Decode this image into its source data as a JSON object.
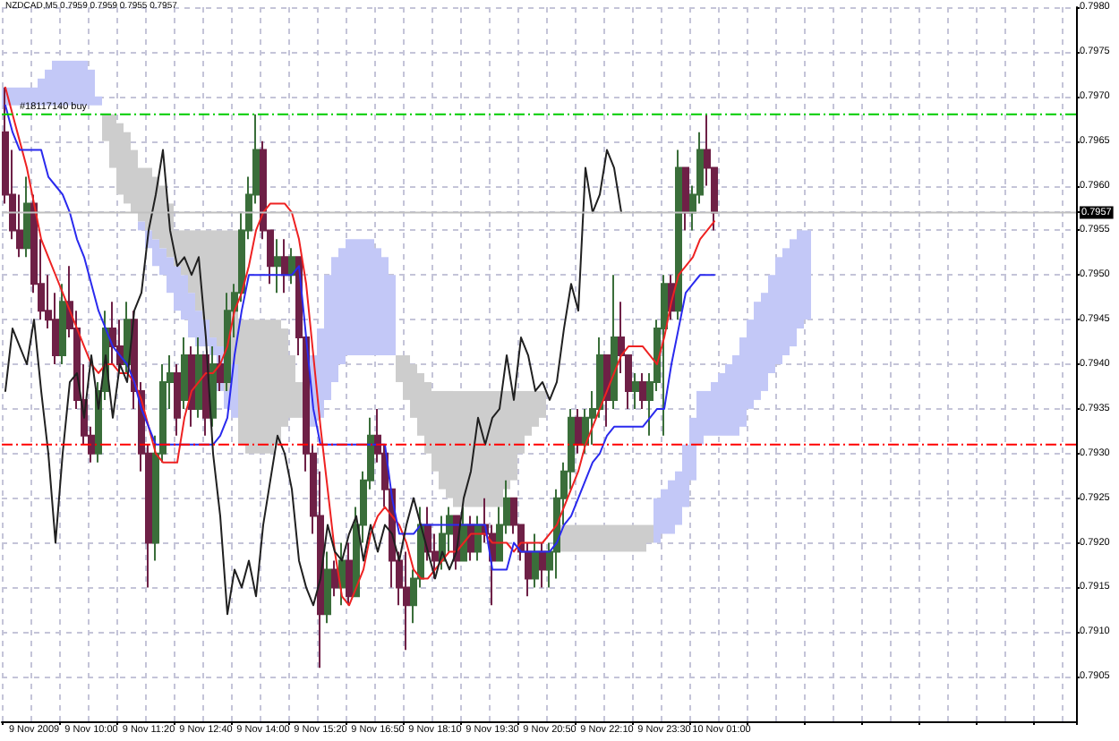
{
  "chart_data": {
    "type": "candlestick",
    "title": "NZDCAD,M5 0.7959 0.7959 0.7955 0.7957",
    "categories": [
      null,
      null,
      null,
      null,
      "9 Nov 2009",
      null,
      null,
      null,
      null,
      null,
      null,
      null,
      "9 Nov 10:00",
      null,
      null,
      null,
      null,
      null,
      null,
      null,
      "9 Nov 11:20",
      null,
      null,
      null,
      null,
      null,
      null,
      null,
      "9 Nov 12:40",
      null,
      null,
      null,
      null,
      null,
      null,
      null,
      "9 Nov 14:00",
      null,
      null,
      null,
      null,
      null,
      null,
      null,
      "9 Nov 15:20",
      null,
      null,
      null,
      null,
      null,
      null,
      null,
      "9 Nov 16:50",
      null,
      null,
      null,
      null,
      null,
      null,
      null,
      "9 Nov 18:10",
      null,
      null,
      null,
      null,
      null,
      null,
      null,
      "9 Nov 19:30",
      null,
      null,
      null,
      null,
      null,
      null,
      null,
      "9 Nov 20:50",
      null,
      null,
      null,
      null,
      null,
      null,
      null,
      "9 Nov 22:10",
      null,
      null,
      null,
      null,
      null,
      null,
      null,
      "9 Nov 23:30",
      null,
      null,
      null,
      null,
      null,
      null,
      null,
      "10 Nov 01:00",
      null,
      null,
      null,
      null,
      null,
      null,
      null,
      null,
      null,
      null,
      null,
      null,
      null,
      null,
      null,
      null,
      null,
      null,
      null,
      null,
      null,
      null,
      null,
      null,
      null,
      null,
      null,
      null,
      null,
      null,
      null,
      null,
      null,
      null,
      null,
      null,
      null,
      null,
      null,
      null,
      null,
      null,
      null,
      null,
      null,
      null,
      null,
      null,
      null
    ],
    "ohlc": [
      [
        0.7966,
        0.7971,
        0.7958,
        0.7959
      ],
      [
        0.7959,
        0.7964,
        0.7954,
        0.7955
      ],
      [
        0.7955,
        0.7959,
        0.7952,
        0.7953
      ],
      [
        0.7953,
        0.7961,
        0.7952,
        0.7958
      ],
      [
        0.7958,
        0.7959,
        0.7948,
        0.7949
      ],
      [
        0.7949,
        0.7954,
        0.7945,
        0.7946
      ],
      [
        0.7946,
        0.795,
        0.7944,
        0.7945
      ],
      [
        0.7945,
        0.7948,
        0.794,
        0.7941
      ],
      [
        0.7941,
        0.7949,
        0.794,
        0.7947
      ],
      [
        0.7947,
        0.7951,
        0.7943,
        0.7944
      ],
      [
        0.7944,
        0.7946,
        0.7935,
        0.7936
      ],
      [
        0.7936,
        0.794,
        0.7931,
        0.7932
      ],
      [
        0.7932,
        0.7933,
        0.7929,
        0.793
      ],
      [
        0.793,
        0.7938,
        0.7929,
        0.7937
      ],
      [
        0.7937,
        0.7946,
        0.7936,
        0.7944
      ],
      [
        0.7944,
        0.7947,
        0.794,
        0.7942
      ],
      [
        0.7942,
        0.7945,
        0.7939,
        0.794
      ],
      [
        0.794,
        0.7947,
        0.7939,
        0.7945
      ],
      [
        0.7945,
        0.7946,
        0.7935,
        0.7937
      ],
      [
        0.7937,
        0.7938,
        0.7928,
        0.793
      ],
      [
        0.793,
        0.7931,
        0.7915,
        0.792
      ],
      [
        0.792,
        0.7932,
        0.7918,
        0.793
      ],
      [
        0.793,
        0.794,
        0.7929,
        0.7938
      ],
      [
        0.7938,
        0.7941,
        0.7935,
        0.7939
      ],
      [
        0.7939,
        0.794,
        0.7932,
        0.7934
      ],
      [
        0.7936,
        0.7943,
        0.7935,
        0.7941
      ],
      [
        0.7941,
        0.7942,
        0.7933,
        0.7935
      ],
      [
        0.7935,
        0.7943,
        0.7934,
        0.7941
      ],
      [
        0.7941,
        0.7941,
        0.7932,
        0.7934
      ],
      [
        0.7934,
        0.7942,
        0.7933,
        0.794
      ],
      [
        0.794,
        0.7941,
        0.7937,
        0.7938
      ],
      [
        0.7938,
        0.7948,
        0.7937,
        0.7946
      ],
      [
        0.7946,
        0.7949,
        0.7943,
        0.7948
      ],
      [
        0.7948,
        0.7957,
        0.7947,
        0.7955
      ],
      [
        0.7955,
        0.7961,
        0.7954,
        0.7959
      ],
      [
        0.7959,
        0.7968,
        0.7958,
        0.7964
      ],
      [
        0.7964,
        0.7965,
        0.7954,
        0.7955
      ],
      [
        0.7955,
        0.7955,
        0.7949,
        0.7951
      ],
      [
        0.7951,
        0.7954,
        0.7948,
        0.7952
      ],
      [
        0.7952,
        0.7954,
        0.7948,
        0.795
      ],
      [
        0.795,
        0.7953,
        0.7949,
        0.7952
      ],
      [
        0.7952,
        0.7952,
        0.7941,
        0.7943
      ],
      [
        0.7943,
        0.7943,
        0.7928,
        0.793
      ],
      [
        0.793,
        0.7931,
        0.7921,
        0.7923
      ],
      [
        0.7923,
        0.7928,
        0.7906,
        0.7912
      ],
      [
        0.7912,
        0.7919,
        0.7911,
        0.7917
      ],
      [
        0.7917,
        0.7918,
        0.7914,
        0.7915
      ],
      [
        0.7915,
        0.792,
        0.7913,
        0.7918
      ],
      [
        0.7918,
        0.792,
        0.7913,
        0.7914
      ],
      [
        0.7914,
        0.7924,
        0.7914,
        0.7922
      ],
      [
        0.7922,
        0.7928,
        0.792,
        0.7927
      ],
      [
        0.7927,
        0.7934,
        0.7926,
        0.7932
      ],
      [
        0.7932,
        0.7935,
        0.7929,
        0.793
      ],
      [
        0.793,
        0.7931,
        0.7924,
        0.7926
      ],
      [
        0.7926,
        0.7926,
        0.7915,
        0.7918
      ],
      [
        0.7918,
        0.7919,
        0.7913,
        0.7915
      ],
      [
        0.7915,
        0.7919,
        0.7908,
        0.7913
      ],
      [
        0.7913,
        0.7917,
        0.7911,
        0.7916
      ],
      [
        0.7916,
        0.7924,
        0.7915,
        0.7922
      ],
      [
        0.7922,
        0.7924,
        0.7918,
        0.7919
      ],
      [
        0.7919,
        0.7921,
        0.7916,
        0.7918
      ],
      [
        0.7918,
        0.7923,
        0.7917,
        0.7921
      ],
      [
        0.7921,
        0.7924,
        0.7919,
        0.7923
      ],
      [
        0.7923,
        0.7923,
        0.7917,
        0.7918
      ],
      [
        0.7918,
        0.7924,
        0.7918,
        0.7922
      ],
      [
        0.7922,
        0.7923,
        0.7918,
        0.7919
      ],
      [
        0.7919,
        0.7923,
        0.7918,
        0.7922
      ],
      [
        0.7922,
        0.7925,
        0.792,
        0.7921
      ],
      [
        0.7921,
        0.7922,
        0.7913,
        0.7918
      ],
      [
        0.7918,
        0.7924,
        0.7918,
        0.7922
      ],
      [
        0.7922,
        0.7927,
        0.7921,
        0.7925
      ],
      [
        0.7925,
        0.7925,
        0.7921,
        0.7922
      ],
      [
        0.7922,
        0.7922,
        0.7918,
        0.7919
      ],
      [
        0.7919,
        0.792,
        0.7914,
        0.7916
      ],
      [
        0.7916,
        0.7921,
        0.7915,
        0.7919
      ],
      [
        0.7919,
        0.792,
        0.7915,
        0.7917
      ],
      [
        0.7917,
        0.792,
        0.7915,
        0.7919
      ],
      [
        0.7919,
        0.7926,
        0.7916,
        0.7925
      ],
      [
        0.7925,
        0.7929,
        0.7922,
        0.7928
      ],
      [
        0.7928,
        0.7935,
        0.7926,
        0.7934
      ],
      [
        0.7934,
        0.7935,
        0.793,
        0.7931
      ],
      [
        0.7931,
        0.7935,
        0.793,
        0.7934
      ],
      [
        0.7934,
        0.7937,
        0.7931,
        0.7935
      ],
      [
        0.7935,
        0.7943,
        0.7934,
        0.7941
      ],
      [
        0.7941,
        0.7941,
        0.7933,
        0.7936
      ],
      [
        0.7936,
        0.795,
        0.7935,
        0.7943
      ],
      [
        0.7943,
        0.7947,
        0.7939,
        0.7941
      ],
      [
        0.7941,
        0.7941,
        0.7935,
        0.7937
      ],
      [
        0.7937,
        0.7939,
        0.7935,
        0.7938
      ],
      [
        0.7938,
        0.7939,
        0.7935,
        0.7936
      ],
      [
        0.7936,
        0.7939,
        0.7932,
        0.7938
      ],
      [
        0.7938,
        0.7945,
        0.7937,
        0.7944
      ],
      [
        0.7944,
        0.795,
        0.7932,
        0.7949
      ],
      [
        0.7949,
        0.795,
        0.7945,
        0.7946
      ],
      [
        0.7946,
        0.7964,
        0.7945,
        0.7962
      ],
      [
        0.7962,
        0.7962,
        0.7955,
        0.7957
      ],
      [
        0.7957,
        0.796,
        0.7955,
        0.7959
      ],
      [
        0.7959,
        0.7966,
        0.7958,
        0.7964
      ],
      [
        0.7964,
        0.7968,
        0.796,
        0.7962
      ],
      [
        0.7962,
        0.7962,
        0.7955,
        0.7957
      ],
      null,
      null,
      null,
      null,
      null,
      null,
      null,
      null,
      null,
      null,
      null,
      null,
      null,
      null,
      null,
      null,
      null,
      null,
      null,
      null,
      null,
      null,
      null,
      null,
      null,
      null,
      null,
      null,
      null,
      null,
      null,
      null,
      null,
      null,
      null,
      null,
      null,
      null,
      null,
      null,
      null,
      null,
      null,
      null,
      null,
      null,
      null,
      null,
      null,
      null
    ],
    "colors": [
      "#6e2046",
      "#6e2046",
      "#6e2046",
      "#3a6e3a",
      "#6e2046",
      "#6e2046",
      "#6e2046",
      "#6e2046",
      "#3a6e3a",
      "#6e2046",
      "#6e2046",
      "#6e2046",
      "#6e2046",
      "#3a6e3a",
      "#3a6e3a",
      "#6e2046",
      "#6e2046",
      "#3a6e3a",
      "#6e2046",
      "#6e2046",
      "#6e2046",
      "#3a6e3a",
      "#3a6e3a",
      "#3a6e3a",
      "#6e2046",
      "#3a6e3a",
      "#6e2046",
      "#3a6e3a",
      "#6e2046",
      "#3a6e3a",
      "#6e2046",
      "#3a6e3a",
      "#3a6e3a",
      "#3a6e3a",
      "#3a6e3a",
      "#3a6e3a",
      "#6e2046",
      "#6e2046",
      "#3a6e3a",
      "#6e2046",
      "#3a6e3a",
      "#6e2046",
      "#6e2046",
      "#6e2046",
      "#6e2046",
      "#3a6e3a",
      "#6e2046",
      "#3a6e3a",
      "#6e2046",
      "#3a6e3a",
      "#3a6e3a",
      "#3a6e3a",
      "#6e2046",
      "#6e2046",
      "#6e2046",
      "#6e2046",
      "#6e2046",
      "#3a6e3a",
      "#3a6e3a",
      "#6e2046",
      "#6e2046",
      "#3a6e3a",
      "#3a6e3a",
      "#6e2046",
      "#3a6e3a",
      "#6e2046",
      "#3a6e3a",
      "#6e2046",
      "#6e2046",
      "#3a6e3a",
      "#3a6e3a",
      "#6e2046",
      "#6e2046",
      "#6e2046",
      "#3a6e3a",
      "#6e2046",
      "#3a6e3a",
      "#3a6e3a",
      "#3a6e3a",
      "#3a6e3a",
      "#6e2046",
      "#3a6e3a",
      "#3a6e3a",
      "#3a6e3a",
      "#6e2046",
      "#3a6e3a",
      "#6e2046",
      "#6e2046",
      "#3a6e3a",
      "#6e2046",
      "#3a6e3a",
      "#3a6e3a",
      "#3a6e3a",
      "#6e2046",
      "#3a6e3a",
      "#6e2046",
      "#3a6e3a",
      "#3a6e3a",
      "#6e2046",
      "#6e2046",
      null,
      null,
      null,
      null,
      null,
      null,
      null,
      null,
      null,
      null,
      null,
      null,
      null,
      null,
      null,
      null,
      null,
      null,
      null,
      null,
      null,
      null,
      null,
      null,
      null,
      null,
      null,
      null,
      null,
      null,
      null,
      null,
      null,
      null,
      null,
      null,
      null,
      null,
      null,
      null,
      null,
      null,
      null,
      null,
      null,
      null,
      null,
      null,
      null,
      null
    ],
    "series": [
      {
        "type": "bar",
        "color": "#c3c8f7",
        "base": [
          0.7969,
          0.7969,
          0.7969,
          0.7969,
          0.7969,
          0.7969,
          0.7969,
          0.7969,
          0.7969,
          0.7969,
          0.7969,
          0.7969,
          0.7969,
          0.7969,
          null,
          null,
          null,
          null,
          null,
          0.7955,
          0.7953,
          0.7951,
          0.795,
          0.7948,
          0.7946,
          0.7945,
          0.7943,
          0.7942,
          0.7942,
          0.7941,
          0.7937,
          0.7935,
          0.7934,
          null,
          null,
          null,
          null,
          null,
          null,
          null,
          null,
          null,
          null,
          0.7933,
          0.7934,
          0.7936,
          0.7938,
          0.794,
          0.7941,
          0.7941,
          0.7941,
          0.7941,
          0.7941,
          0.7941,
          0.7941,
          null,
          null,
          null,
          null,
          null,
          null,
          null,
          null,
          null,
          null,
          null,
          null,
          null,
          null,
          null,
          null,
          null,
          null,
          null,
          null,
          null,
          null,
          null,
          null,
          null,
          null,
          null,
          null,
          null,
          null,
          null,
          null,
          null,
          null,
          null,
          null,
          0.792,
          0.7921,
          0.7921,
          0.7922,
          0.7924,
          0.7927,
          0.7931,
          0.7932,
          0.7932,
          0.7932,
          0.7932,
          0.7932,
          0.7933,
          0.7935,
          0.7936,
          0.7937,
          0.7939,
          0.794,
          0.7941,
          0.7942,
          0.7944,
          0.7945,
          null,
          null,
          null,
          null,
          null,
          null,
          null,
          null,
          null,
          null,
          null,
          null,
          null,
          null,
          null,
          null,
          null,
          null,
          null,
          null,
          null,
          null,
          null,
          null,
          null,
          null,
          null,
          null,
          null,
          null,
          null,
          null,
          null,
          null,
          null,
          null,
          null
        ],
        "values": [
          0.0002,
          0.0002,
          0.0002,
          0.0002,
          0.0002,
          0.0003,
          0.0004,
          0.0005,
          0.0005,
          0.0005,
          0.0005,
          0.0005,
          0.0004,
          0.0001,
          null,
          null,
          null,
          null,
          null,
          0.0001,
          0.0002,
          0.0003,
          0.0003,
          0.0004,
          0.0005,
          0.0005,
          0.0005,
          0.0004,
          0.0003,
          0.0002,
          0.0005,
          0.0002,
          0.0006,
          null,
          null,
          null,
          null,
          null,
          null,
          null,
          null,
          null,
          null,
          0.0008,
          0.001,
          0.0014,
          0.0014,
          0.0013,
          0.0013,
          0.0013,
          0.0013,
          0.0013,
          0.0012,
          0.0011,
          0.0009,
          null,
          null,
          null,
          null,
          null,
          null,
          null,
          null,
          null,
          null,
          null,
          null,
          null,
          null,
          null,
          null,
          null,
          null,
          null,
          null,
          null,
          null,
          null,
          null,
          null,
          null,
          null,
          null,
          null,
          null,
          null,
          null,
          null,
          null,
          null,
          null,
          0.0005,
          0.0005,
          0.0006,
          0.0006,
          0.0007,
          0.0007,
          0.0006,
          0.0005,
          0.0006,
          0.0007,
          0.0008,
          0.0009,
          0.001,
          0.001,
          0.0011,
          0.0011,
          0.0011,
          0.0012,
          0.0012,
          0.0012,
          0.0011,
          0.001,
          null,
          null,
          null,
          null,
          null,
          null,
          null,
          null,
          null,
          null,
          null,
          null,
          null,
          null,
          null,
          null,
          null,
          null,
          null,
          null,
          null,
          null,
          null,
          null,
          null,
          null,
          null,
          null,
          null,
          null,
          null,
          null,
          null,
          null,
          null,
          null,
          null
        ]
      },
      {
        "type": "bar",
        "color": "#cdcdcd",
        "base": [
          null,
          null,
          null,
          null,
          null,
          null,
          null,
          null,
          null,
          null,
          null,
          null,
          null,
          null,
          0.7965,
          0.7962,
          0.7959,
          0.7958,
          0.7957,
          0.7956,
          0.7955,
          0.7954,
          0.7953,
          0.7952,
          0.7951,
          0.795,
          0.7948,
          0.7946,
          0.7945,
          0.7943,
          0.7942,
          0.7937,
          0.794,
          0.7931,
          0.793,
          0.793,
          0.793,
          0.793,
          0.7931,
          0.7933,
          0.7934,
          0.7934,
          null,
          null,
          null,
          null,
          null,
          null,
          null,
          null,
          null,
          null,
          null,
          null,
          null,
          0.7938,
          0.7936,
          0.7934,
          0.7932,
          0.793,
          0.7928,
          0.7926,
          0.7925,
          0.7924,
          0.7924,
          0.7924,
          0.7924,
          0.7924,
          0.7924,
          0.7924,
          0.7926,
          0.7927,
          0.793,
          0.7932,
          0.7933,
          0.7934,
          null,
          null,
          0.7919,
          0.7919,
          0.7919,
          0.7919,
          0.7919,
          0.7919,
          0.7919,
          0.7919,
          0.7919,
          0.7919,
          0.7919,
          0.7919,
          0.792,
          null,
          null,
          null,
          null,
          null,
          null,
          null,
          null,
          null,
          null,
          null,
          null,
          null,
          null,
          null,
          null,
          null,
          null,
          null,
          null,
          null,
          null,
          null,
          null,
          null,
          null,
          null,
          null,
          null,
          null,
          null,
          null,
          null,
          null,
          null,
          null,
          null,
          null,
          null,
          null,
          null,
          null,
          null,
          null,
          null,
          null,
          null,
          null,
          null,
          null,
          null,
          null,
          null,
          null,
          null,
          null,
          null,
          null,
          null
        ],
        "values": [
          null,
          null,
          null,
          null,
          null,
          null,
          null,
          null,
          null,
          null,
          null,
          null,
          null,
          null,
          0.0003,
          0.0006,
          0.0008,
          0.0008,
          0.0007,
          0.0006,
          0.0007,
          0.0007,
          0.0007,
          0.0006,
          0.0004,
          0.0005,
          0.0007,
          0.0009,
          0.001,
          0.0012,
          0.0013,
          0.0018,
          0.0015,
          0.0014,
          0.0015,
          0.0015,
          0.0015,
          0.0015,
          0.0014,
          0.0011,
          0.0007,
          0.0004,
          null,
          null,
          null,
          null,
          null,
          null,
          null,
          null,
          null,
          null,
          null,
          null,
          null,
          0.0003,
          0.0005,
          0.0006,
          0.0007,
          0.0008,
          0.0009,
          0.0011,
          0.0012,
          0.0013,
          0.0013,
          0.0013,
          0.0013,
          0.0013,
          0.0013,
          0.0013,
          0.0011,
          0.001,
          0.0007,
          0.0005,
          0.0004,
          0.0003,
          null,
          null,
          0.0003,
          0.0003,
          0.0003,
          0.0003,
          0.0003,
          0.0003,
          0.0003,
          0.0003,
          0.0003,
          0.0003,
          0.0003,
          0.0003,
          0.0002,
          null,
          null,
          null,
          null,
          null,
          null,
          null,
          null,
          null,
          null,
          null,
          null,
          null,
          null,
          null,
          null,
          null,
          null,
          null,
          null,
          null,
          null,
          null,
          null,
          null,
          null,
          null,
          null,
          null,
          null,
          null,
          null,
          null,
          null,
          null,
          null,
          null,
          null,
          null,
          null,
          null,
          null,
          null,
          null,
          null,
          null,
          null,
          null,
          null,
          null,
          null,
          null,
          null,
          null,
          null,
          null,
          null,
          null,
          null
        ]
      },
      {
        "type": "line",
        "color": "#ee2222",
        "values": [
          0.7971,
          0.7968,
          0.7965,
          0.7962,
          0.7958,
          0.7954,
          0.7952,
          0.795,
          0.7948,
          0.7946,
          0.7944,
          0.7942,
          0.794,
          0.7939,
          0.794,
          0.794,
          0.7939,
          0.7939,
          0.7938,
          0.7936,
          0.7933,
          0.793,
          0.7929,
          0.7929,
          0.7929,
          0.7934,
          0.7937,
          0.7938,
          0.7939,
          0.7939,
          0.794,
          0.7942,
          0.7946,
          0.7948,
          0.7951,
          0.7955,
          0.7957,
          0.7958,
          0.7958,
          0.7958,
          0.7957,
          0.7954,
          0.7949,
          0.7941,
          0.7933,
          0.7926,
          0.7919,
          0.7914,
          0.7913,
          0.7915,
          0.7917,
          0.7921,
          0.7923,
          0.7924,
          0.7923,
          0.7922,
          0.792,
          0.7917,
          0.7916,
          0.7916,
          0.7917,
          0.7918,
          0.7919,
          0.7919,
          0.792,
          0.7921,
          0.7921,
          0.7921,
          0.792,
          0.792,
          0.792,
          0.7919,
          0.792,
          0.792,
          0.792,
          0.792,
          0.7921,
          0.7922,
          0.7924,
          0.7926,
          0.7928,
          0.7931,
          0.7933,
          0.7935,
          0.7937,
          0.7939,
          0.7941,
          0.7942,
          0.7942,
          0.7942,
          0.7941,
          0.794,
          0.7943,
          0.7947,
          0.795,
          0.7951,
          0.7952,
          0.7954,
          0.7955,
          0.7956,
          null,
          null,
          null,
          null,
          null,
          null,
          null,
          null,
          null,
          null,
          null,
          null,
          null,
          null,
          null,
          null,
          null,
          null,
          null,
          null,
          null,
          null,
          null,
          null,
          null,
          null,
          null,
          null,
          null,
          null,
          null,
          null,
          null,
          null,
          null,
          null,
          null,
          null,
          null,
          null,
          null,
          null,
          null,
          null,
          null,
          null,
          null,
          null,
          null,
          null
        ]
      },
      {
        "type": "line",
        "color": "#2a2aee",
        "values": [
          0.7969,
          0.7966,
          0.7964,
          0.7964,
          0.7964,
          0.7964,
          0.7961,
          0.796,
          0.7959,
          0.7957,
          0.7954,
          0.7952,
          0.7949,
          0.7946,
          0.7944,
          0.7942,
          0.7941,
          0.794,
          0.7938,
          0.7935,
          0.7933,
          0.7931,
          0.7931,
          0.7931,
          0.7931,
          0.7931,
          0.7931,
          0.7931,
          0.7931,
          0.7931,
          0.7932,
          0.7934,
          0.7941,
          0.7946,
          0.795,
          0.795,
          0.795,
          0.795,
          0.795,
          0.795,
          0.795,
          0.7951,
          0.7943,
          0.7935,
          0.7931,
          0.7931,
          0.7931,
          0.7931,
          0.7931,
          0.7931,
          0.7931,
          0.7931,
          0.7931,
          0.7931,
          0.7925,
          0.7921,
          0.7921,
          0.7921,
          0.7922,
          0.7922,
          0.7922,
          0.7922,
          0.7922,
          0.7922,
          0.7922,
          0.7922,
          0.7922,
          0.7922,
          0.7917,
          0.7917,
          0.7917,
          0.792,
          0.7919,
          0.7919,
          0.7919,
          0.7919,
          0.7919,
          0.792,
          0.7922,
          0.7923,
          0.7925,
          0.7927,
          0.7929,
          0.793,
          0.7932,
          0.7933,
          0.7933,
          0.7933,
          0.7933,
          0.7933,
          0.7934,
          0.7935,
          0.7935,
          0.794,
          0.7944,
          0.7948,
          0.7949,
          0.795,
          0.795,
          0.795,
          null,
          null,
          null,
          null,
          null,
          null,
          null,
          null,
          null,
          null,
          null,
          null,
          null,
          null,
          null,
          null,
          null,
          null,
          null,
          null,
          null,
          null,
          null,
          null,
          null,
          null,
          null,
          null,
          null,
          null,
          null,
          null,
          null,
          null,
          null,
          null,
          null,
          null,
          null,
          null,
          null,
          null,
          null,
          null,
          null,
          null,
          null,
          null,
          null,
          null
        ]
      },
      {
        "type": "line",
        "color": "#202020",
        "values": [
          0.7937,
          0.7944,
          0.7942,
          0.794,
          0.7945,
          0.7937,
          0.793,
          0.792,
          0.793,
          0.7938,
          0.7939,
          0.7934,
          0.7941,
          0.7935,
          0.7941,
          0.7934,
          0.794,
          0.7938,
          0.7946,
          0.7948,
          0.7955,
          0.7959,
          0.7964,
          0.7955,
          0.7951,
          0.7952,
          0.795,
          0.7952,
          0.7943,
          0.793,
          0.7923,
          0.7912,
          0.7917,
          0.7915,
          0.7918,
          0.7914,
          0.7922,
          0.7927,
          0.7932,
          0.793,
          0.7926,
          0.7918,
          0.7915,
          0.7913,
          0.7916,
          0.7922,
          0.7919,
          0.7918,
          0.7921,
          0.7923,
          0.7918,
          0.7922,
          0.7919,
          0.7922,
          0.7921,
          0.7918,
          0.7922,
          0.7925,
          0.7922,
          0.7919,
          0.7916,
          0.7919,
          0.7917,
          0.7919,
          0.7925,
          0.7928,
          0.7934,
          0.7931,
          0.7934,
          0.7935,
          0.7941,
          0.7936,
          0.7943,
          0.7941,
          0.7937,
          0.7938,
          0.7936,
          0.7938,
          0.7944,
          0.7949,
          0.7946,
          0.7962,
          0.7957,
          0.7959,
          0.7964,
          0.7962,
          0.7957,
          null,
          null,
          null,
          null,
          null,
          null,
          null,
          null,
          null,
          null,
          null,
          null,
          null,
          null,
          null,
          null,
          null,
          null,
          null,
          null,
          null,
          null,
          null,
          null,
          null,
          null,
          null,
          null,
          null,
          null,
          null,
          null,
          null,
          null,
          null,
          null,
          null,
          null,
          null,
          null,
          null,
          null,
          null,
          null,
          null,
          null,
          null,
          null,
          null,
          null,
          null,
          null,
          null,
          null,
          null,
          null,
          null,
          null,
          null,
          null,
          null,
          null,
          null
        ]
      }
    ],
    "ylim": [
      0.79,
      0.798
    ],
    "yticks": [
      0.7905,
      {
        "value": 0.791,
        "label": "0.7910"
      },
      0.7915,
      {
        "value": 0.792,
        "label": "0.7920"
      },
      0.7925,
      {
        "value": 0.793,
        "label": "0.7930"
      },
      0.7935,
      {
        "value": 0.794,
        "label": "0.7940"
      },
      0.7945,
      {
        "value": 0.795,
        "label": "0.7950"
      },
      0.7955,
      0.7957,
      {
        "value": 0.796,
        "label": "0.7960"
      },
      0.7965,
      {
        "value": 0.797,
        "label": "0.7970"
      },
      0.7975,
      {
        "value": 0.798,
        "label": "0.7980"
      }
    ],
    "grid": true,
    "ref_lines": [
      {
        "axis": "y",
        "value": 0.7968,
        "label": "#18117140 buy",
        "color": "#00cc00",
        "line_style": "dashdot"
      },
      {
        "axis": "y",
        "value": 0.7931,
        "color": "#ff0000",
        "line_style": "dashdot"
      },
      {
        "axis": "y",
        "value": 0.7957,
        "color": "#c0c0c0",
        "line_style": "solid"
      }
    ]
  }
}
